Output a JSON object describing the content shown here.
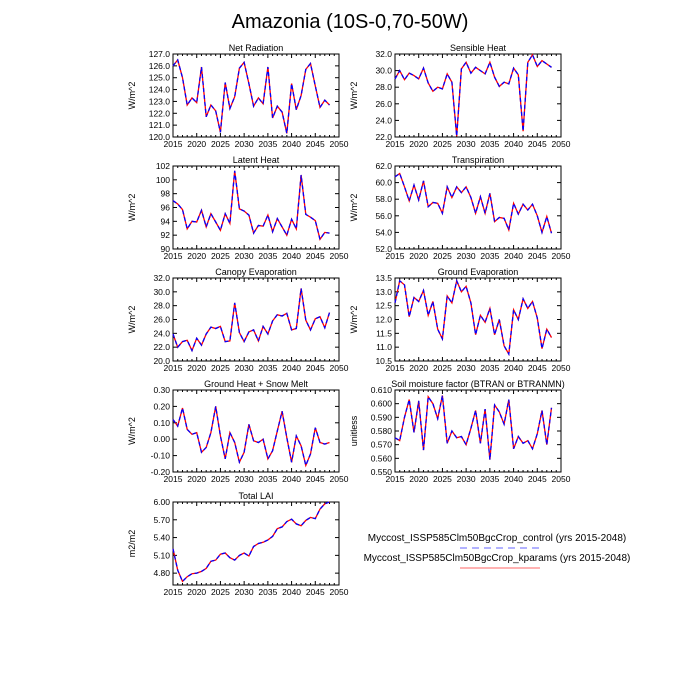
{
  "title": "Amazonia (10S-0,70-50W)",
  "legend": {
    "placement": "bottom-right",
    "entries": [
      {
        "label": "Myccost_ISSP585Clm50BgcCrop_control (yrs 2015-2048)",
        "color": "#0000ff",
        "style": "dashed"
      },
      {
        "label": "Myccost_ISSP585Clm50BgcCrop_kparams (yrs 2015-2048)",
        "color": "#ff0000",
        "style": "solid"
      }
    ]
  },
  "colors": {
    "control": "#0000ff",
    "kparams": "#ff0000"
  },
  "chart_data": [
    {
      "type": "line",
      "title": "Net Radiation",
      "ylabel": "W/m^2",
      "xlim": [
        2015,
        2050
      ],
      "ylim": [
        120,
        127
      ],
      "xticks": [
        "2015",
        "2020",
        "2025",
        "2030",
        "2035",
        "2040",
        "2045",
        "2050"
      ],
      "yticks": [
        "120.0",
        "121.0",
        "122.0",
        "123.0",
        "124.0",
        "125.0",
        "126.0",
        "127.0"
      ],
      "x_start": 2015,
      "values": [
        126.0,
        126.5,
        125.0,
        122.7,
        123.3,
        122.9,
        125.9,
        121.7,
        122.7,
        122.2,
        120.4,
        124.6,
        122.4,
        123.4,
        125.8,
        126.3,
        124.5,
        122.6,
        123.3,
        122.8,
        125.9,
        121.6,
        122.6,
        122.1,
        120.3,
        124.5,
        122.3,
        123.5,
        125.7,
        126.2,
        124.3,
        122.5,
        123.1,
        122.7
      ]
    },
    {
      "type": "line",
      "title": "Sensible Heat",
      "ylabel": "W/m^2",
      "xlim": [
        2015,
        2050
      ],
      "ylim": [
        22,
        32
      ],
      "xticks": [
        "2015",
        "2020",
        "2025",
        "2030",
        "2035",
        "2040",
        "2045",
        "2050"
      ],
      "yticks": [
        "22.0",
        "24.0",
        "26.0",
        "28.0",
        "30.0",
        "32.0"
      ],
      "x_start": 2015,
      "values": [
        29.0,
        30.0,
        28.9,
        29.7,
        29.4,
        29.0,
        30.3,
        28.5,
        27.5,
        28.0,
        27.8,
        29.6,
        28.6,
        22.1,
        30.2,
        31.0,
        29.7,
        30.4,
        30.0,
        29.6,
        31.0,
        29.2,
        28.1,
        28.6,
        28.4,
        30.3,
        29.5,
        22.7,
        31.0,
        31.9,
        30.5,
        31.2,
        30.8,
        30.4
      ]
    },
    {
      "type": "line",
      "title": "Latent Heat",
      "ylabel": "W/m^2",
      "xlim": [
        2015,
        2050
      ],
      "ylim": [
        90,
        102
      ],
      "xticks": [
        "2015",
        "2020",
        "2025",
        "2030",
        "2035",
        "2040",
        "2045",
        "2050"
      ],
      "yticks": [
        "90",
        "92",
        "94",
        "96",
        "98",
        "100",
        "102"
      ],
      "x_start": 2015,
      "values": [
        97.0,
        96.5,
        95.7,
        92.9,
        94.0,
        93.9,
        95.6,
        93.2,
        95.1,
        93.9,
        92.7,
        95.1,
        93.7,
        101.3,
        95.8,
        95.5,
        94.9,
        92.3,
        93.4,
        93.3,
        94.9,
        92.5,
        94.4,
        93.2,
        92.0,
        94.3,
        92.9,
        100.7,
        95.0,
        94.6,
        94.1,
        91.4,
        92.4,
        92.3
      ]
    },
    {
      "type": "line",
      "title": "Transpiration",
      "ylabel": "W/m^2",
      "xlim": [
        2015,
        2050
      ],
      "ylim": [
        52,
        62
      ],
      "xticks": [
        "2015",
        "2020",
        "2025",
        "2030",
        "2035",
        "2040",
        "2045",
        "2050"
      ],
      "yticks": [
        "52.0",
        "54.0",
        "56.0",
        "58.0",
        "60.0",
        "62.0"
      ],
      "x_start": 2015,
      "values": [
        60.7,
        61.1,
        59.5,
        57.8,
        59.7,
        57.9,
        60.2,
        57.1,
        57.6,
        57.5,
        56.3,
        59.5,
        58.2,
        59.5,
        58.8,
        59.5,
        58.2,
        56.3,
        58.3,
        56.3,
        58.7,
        55.3,
        55.8,
        55.7,
        54.3,
        57.5,
        56.2,
        57.4,
        56.7,
        57.4,
        56.0,
        54.0,
        55.9,
        53.9
      ]
    },
    {
      "type": "line",
      "title": "Canopy Evaporation",
      "ylabel": "W/m^2",
      "xlim": [
        2015,
        2050
      ],
      "ylim": [
        20,
        32
      ],
      "xticks": [
        "2015",
        "2020",
        "2025",
        "2030",
        "2035",
        "2040",
        "2045",
        "2050"
      ],
      "yticks": [
        "20.0",
        "22.0",
        "24.0",
        "26.0",
        "28.0",
        "30.0",
        "32.0"
      ],
      "x_start": 2015,
      "values": [
        23.9,
        22.0,
        22.8,
        23.0,
        21.5,
        23.3,
        22.3,
        23.9,
        24.9,
        24.7,
        25.0,
        22.8,
        22.9,
        28.4,
        24.1,
        22.8,
        24.2,
        24.5,
        22.9,
        25.0,
        23.9,
        25.8,
        26.7,
        26.5,
        26.9,
        24.5,
        24.7,
        30.5,
        25.9,
        24.5,
        26.1,
        26.4,
        24.8,
        27.0
      ]
    },
    {
      "type": "line",
      "title": "Ground Evaporation",
      "ylabel": "W/m^2",
      "xlim": [
        2015,
        2050
      ],
      "ylim": [
        10.5,
        13.5
      ],
      "xticks": [
        "2015",
        "2020",
        "2025",
        "2030",
        "2035",
        "2040",
        "2045",
        "2050"
      ],
      "yticks": [
        "10.5",
        "11.0",
        "11.5",
        "12.0",
        "12.5",
        "13.0",
        "13.5"
      ],
      "x_start": 2015,
      "values": [
        12.6,
        13.4,
        13.25,
        12.1,
        12.8,
        12.65,
        13.05,
        12.15,
        12.65,
        11.65,
        11.3,
        12.85,
        12.6,
        13.4,
        13.0,
        13.2,
        12.6,
        11.45,
        12.15,
        11.9,
        12.4,
        11.45,
        12.0,
        11.05,
        10.75,
        12.35,
        12.0,
        12.75,
        12.4,
        12.65,
        12.05,
        10.95,
        11.65,
        11.35
      ]
    },
    {
      "type": "line",
      "title": "Ground Heat + Snow Melt",
      "ylabel": "W/m^2",
      "xlim": [
        2015,
        2050
      ],
      "ylim": [
        -0.2,
        0.3
      ],
      "xticks": [
        "2015",
        "2020",
        "2025",
        "2030",
        "2035",
        "2040",
        "2045",
        "2050"
      ],
      "yticks": [
        "-0.20",
        "-0.10",
        "0.00",
        "0.10",
        "0.20",
        "0.30"
      ],
      "x_start": 2015,
      "values": [
        0.12,
        0.08,
        0.19,
        0.06,
        0.03,
        0.04,
        -0.08,
        -0.05,
        0.04,
        0.2,
        0.02,
        -0.12,
        0.04,
        -0.02,
        -0.14,
        -0.08,
        0.09,
        -0.01,
        -0.02,
        0.0,
        -0.12,
        -0.07,
        0.05,
        0.17,
        0.01,
        -0.14,
        0.02,
        -0.04,
        -0.16,
        -0.09,
        0.07,
        -0.02,
        -0.03,
        -0.02
      ]
    },
    {
      "type": "line",
      "title": "Soil moisture factor (BTRAN or BTRANMN)",
      "ylabel": "unitless",
      "xlim": [
        2015,
        2050
      ],
      "ylim": [
        0.55,
        0.61
      ],
      "xticks": [
        "2015",
        "2020",
        "2025",
        "2030",
        "2035",
        "2040",
        "2045",
        "2050"
      ],
      "yticks": [
        "0.550",
        "0.560",
        "0.570",
        "0.580",
        "0.590",
        "0.600",
        "0.610"
      ],
      "x_start": 2015,
      "values": [
        0.575,
        0.573,
        0.59,
        0.603,
        0.579,
        0.602,
        0.566,
        0.605,
        0.6,
        0.589,
        0.606,
        0.571,
        0.58,
        0.575,
        0.576,
        0.57,
        0.582,
        0.595,
        0.571,
        0.596,
        0.559,
        0.599,
        0.594,
        0.585,
        0.603,
        0.567,
        0.576,
        0.571,
        0.573,
        0.567,
        0.578,
        0.595,
        0.57,
        0.597
      ]
    },
    {
      "type": "line",
      "title": "Total LAI",
      "ylabel": "m2/m2",
      "xlim": [
        2015,
        2050
      ],
      "ylim": [
        4.6,
        6.0
      ],
      "xticks": [
        "2015",
        "2020",
        "2025",
        "2030",
        "2035",
        "2040",
        "2045",
        "2050"
      ],
      "yticks": [
        "4.80",
        "5.10",
        "5.40",
        "5.70",
        "6.00"
      ],
      "ytick_values": [
        4.8,
        5.1,
        5.4,
        5.7,
        6.0
      ],
      "x_start": 2015,
      "values": [
        5.21,
        4.85,
        4.66,
        4.74,
        4.79,
        4.8,
        4.83,
        4.88,
        5.0,
        5.02,
        5.12,
        5.14,
        5.06,
        5.02,
        5.1,
        5.14,
        5.09,
        5.25,
        5.3,
        5.32,
        5.36,
        5.42,
        5.55,
        5.58,
        5.67,
        5.71,
        5.63,
        5.6,
        5.69,
        5.74,
        5.72,
        5.88,
        5.97,
        6.0
      ]
    }
  ]
}
